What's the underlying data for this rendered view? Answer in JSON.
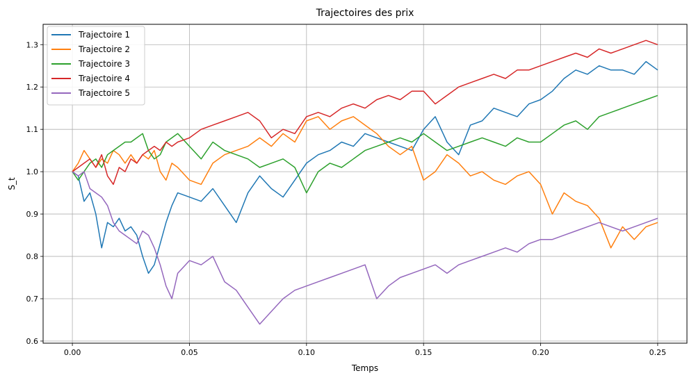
{
  "chart_data": {
    "type": "line",
    "title": "Trajectoires des prix",
    "xlabel": "Temps",
    "ylabel": "S_t",
    "xlim": [
      -0.0125,
      0.2625
    ],
    "ylim": [
      0.595,
      1.348
    ],
    "xticks": [
      0.0,
      0.05,
      0.1,
      0.15,
      0.2,
      0.25
    ],
    "xtick_labels": [
      "0.00",
      "0.05",
      "0.10",
      "0.15",
      "0.20",
      "0.25"
    ],
    "yticks": [
      0.6,
      0.7,
      0.8,
      0.9,
      1.0,
      1.1,
      1.2,
      1.3
    ],
    "ytick_labels": [
      "0.6",
      "0.7",
      "0.8",
      "0.9",
      "1.0",
      "1.1",
      "1.2",
      "1.3"
    ],
    "grid": true,
    "legend_position": "top-left",
    "series": [
      {
        "name": "Trajectoire 1",
        "color": "#1f77b4",
        "x": [
          0,
          0.0025,
          0.005,
          0.0075,
          0.01,
          0.0125,
          0.015,
          0.0175,
          0.02,
          0.0225,
          0.025,
          0.0275,
          0.03,
          0.0325,
          0.035,
          0.0375,
          0.04,
          0.0425,
          0.045,
          0.05,
          0.055,
          0.06,
          0.065,
          0.07,
          0.075,
          0.08,
          0.085,
          0.09,
          0.095,
          0.1,
          0.105,
          0.11,
          0.115,
          0.12,
          0.125,
          0.13,
          0.135,
          0.14,
          0.145,
          0.15,
          0.155,
          0.16,
          0.165,
          0.17,
          0.175,
          0.18,
          0.185,
          0.19,
          0.195,
          0.2,
          0.205,
          0.21,
          0.215,
          0.22,
          0.225,
          0.23,
          0.235,
          0.24,
          0.245,
          0.25
        ],
        "y": [
          1.0,
          0.99,
          0.93,
          0.95,
          0.9,
          0.82,
          0.88,
          0.87,
          0.89,
          0.86,
          0.87,
          0.85,
          0.8,
          0.76,
          0.78,
          0.83,
          0.88,
          0.92,
          0.95,
          0.94,
          0.93,
          0.96,
          0.92,
          0.88,
          0.95,
          0.99,
          0.96,
          0.94,
          0.98,
          1.02,
          1.04,
          1.05,
          1.07,
          1.06,
          1.09,
          1.08,
          1.07,
          1.06,
          1.05,
          1.1,
          1.13,
          1.07,
          1.04,
          1.11,
          1.12,
          1.15,
          1.14,
          1.13,
          1.16,
          1.17,
          1.19,
          1.22,
          1.24,
          1.23,
          1.25,
          1.24,
          1.24,
          1.23,
          1.26,
          1.24
        ]
      },
      {
        "name": "Trajectoire 2",
        "color": "#ff7f0e",
        "x": [
          0,
          0.0025,
          0.005,
          0.0075,
          0.01,
          0.0125,
          0.015,
          0.0175,
          0.02,
          0.0225,
          0.025,
          0.0275,
          0.03,
          0.0325,
          0.035,
          0.0375,
          0.04,
          0.0425,
          0.045,
          0.05,
          0.055,
          0.06,
          0.065,
          0.07,
          0.075,
          0.08,
          0.085,
          0.09,
          0.095,
          0.1,
          0.105,
          0.11,
          0.115,
          0.12,
          0.125,
          0.13,
          0.135,
          0.14,
          0.145,
          0.15,
          0.155,
          0.16,
          0.165,
          0.17,
          0.175,
          0.18,
          0.185,
          0.19,
          0.195,
          0.2,
          0.205,
          0.21,
          0.215,
          0.22,
          0.225,
          0.23,
          0.235,
          0.24,
          0.245,
          0.25
        ],
        "y": [
          1.0,
          1.02,
          1.05,
          1.03,
          1.01,
          1.03,
          1.02,
          1.05,
          1.04,
          1.02,
          1.04,
          1.02,
          1.04,
          1.03,
          1.05,
          1.0,
          0.98,
          1.02,
          1.01,
          0.98,
          0.97,
          1.02,
          1.04,
          1.05,
          1.06,
          1.08,
          1.06,
          1.09,
          1.07,
          1.12,
          1.13,
          1.1,
          1.12,
          1.13,
          1.11,
          1.09,
          1.06,
          1.04,
          1.06,
          0.98,
          1.0,
          1.04,
          1.02,
          0.99,
          1.0,
          0.98,
          0.97,
          0.99,
          1.0,
          0.97,
          0.9,
          0.95,
          0.93,
          0.92,
          0.89,
          0.82,
          0.87,
          0.84,
          0.87,
          0.88
        ]
      },
      {
        "name": "Trajectoire 3",
        "color": "#2ca02c",
        "x": [
          0,
          0.0025,
          0.005,
          0.0075,
          0.01,
          0.0125,
          0.015,
          0.0175,
          0.02,
          0.0225,
          0.025,
          0.0275,
          0.03,
          0.0325,
          0.035,
          0.0375,
          0.04,
          0.0425,
          0.045,
          0.05,
          0.055,
          0.06,
          0.065,
          0.07,
          0.075,
          0.08,
          0.085,
          0.09,
          0.095,
          0.1,
          0.105,
          0.11,
          0.115,
          0.12,
          0.125,
          0.13,
          0.135,
          0.14,
          0.145,
          0.15,
          0.155,
          0.16,
          0.165,
          0.17,
          0.175,
          0.18,
          0.185,
          0.19,
          0.195,
          0.2,
          0.205,
          0.21,
          0.215,
          0.22,
          0.225,
          0.23,
          0.235,
          0.24,
          0.245,
          0.25
        ],
        "y": [
          1.0,
          0.98,
          1.0,
          1.02,
          1.03,
          1.01,
          1.04,
          1.05,
          1.06,
          1.07,
          1.07,
          1.08,
          1.09,
          1.05,
          1.03,
          1.04,
          1.07,
          1.08,
          1.09,
          1.06,
          1.03,
          1.07,
          1.05,
          1.04,
          1.03,
          1.01,
          1.02,
          1.03,
          1.01,
          0.95,
          1.0,
          1.02,
          1.01,
          1.03,
          1.05,
          1.06,
          1.07,
          1.08,
          1.07,
          1.09,
          1.07,
          1.05,
          1.06,
          1.07,
          1.08,
          1.07,
          1.06,
          1.08,
          1.07,
          1.07,
          1.09,
          1.11,
          1.12,
          1.1,
          1.13,
          1.14,
          1.15,
          1.16,
          1.17,
          1.18
        ]
      },
      {
        "name": "Trajectoire 4",
        "color": "#d62728",
        "x": [
          0,
          0.0025,
          0.005,
          0.0075,
          0.01,
          0.0125,
          0.015,
          0.0175,
          0.02,
          0.0225,
          0.025,
          0.0275,
          0.03,
          0.0325,
          0.035,
          0.0375,
          0.04,
          0.0425,
          0.045,
          0.05,
          0.055,
          0.06,
          0.065,
          0.07,
          0.075,
          0.08,
          0.085,
          0.09,
          0.095,
          0.1,
          0.105,
          0.11,
          0.115,
          0.12,
          0.125,
          0.13,
          0.135,
          0.14,
          0.145,
          0.15,
          0.155,
          0.16,
          0.165,
          0.17,
          0.175,
          0.18,
          0.185,
          0.19,
          0.195,
          0.2,
          0.205,
          0.21,
          0.215,
          0.22,
          0.225,
          0.23,
          0.235,
          0.24,
          0.245,
          0.25
        ],
        "y": [
          1.0,
          1.01,
          1.02,
          1.03,
          1.01,
          1.04,
          0.99,
          0.97,
          1.01,
          1.0,
          1.03,
          1.02,
          1.04,
          1.05,
          1.06,
          1.05,
          1.07,
          1.06,
          1.07,
          1.08,
          1.1,
          1.11,
          1.12,
          1.13,
          1.14,
          1.12,
          1.08,
          1.1,
          1.09,
          1.13,
          1.14,
          1.13,
          1.15,
          1.16,
          1.15,
          1.17,
          1.18,
          1.17,
          1.19,
          1.19,
          1.16,
          1.18,
          1.2,
          1.21,
          1.22,
          1.23,
          1.22,
          1.24,
          1.24,
          1.25,
          1.26,
          1.27,
          1.28,
          1.27,
          1.29,
          1.28,
          1.29,
          1.3,
          1.31,
          1.3
        ]
      },
      {
        "name": "Trajectoire 5",
        "color": "#9467bd",
        "x": [
          0,
          0.0025,
          0.005,
          0.0075,
          0.01,
          0.0125,
          0.015,
          0.0175,
          0.02,
          0.0225,
          0.025,
          0.0275,
          0.03,
          0.0325,
          0.035,
          0.0375,
          0.04,
          0.0425,
          0.045,
          0.05,
          0.055,
          0.06,
          0.065,
          0.07,
          0.075,
          0.08,
          0.085,
          0.09,
          0.095,
          0.1,
          0.105,
          0.11,
          0.115,
          0.12,
          0.125,
          0.13,
          0.135,
          0.14,
          0.145,
          0.15,
          0.155,
          0.16,
          0.165,
          0.17,
          0.175,
          0.18,
          0.185,
          0.19,
          0.195,
          0.2,
          0.205,
          0.21,
          0.215,
          0.22,
          0.225,
          0.23,
          0.235,
          0.24,
          0.245,
          0.25
        ],
        "y": [
          1.0,
          0.99,
          1.0,
          0.96,
          0.95,
          0.94,
          0.92,
          0.88,
          0.86,
          0.85,
          0.84,
          0.83,
          0.86,
          0.85,
          0.82,
          0.78,
          0.73,
          0.7,
          0.76,
          0.79,
          0.78,
          0.8,
          0.74,
          0.72,
          0.68,
          0.64,
          0.67,
          0.7,
          0.72,
          0.73,
          0.74,
          0.75,
          0.76,
          0.77,
          0.78,
          0.7,
          0.73,
          0.75,
          0.76,
          0.77,
          0.78,
          0.76,
          0.78,
          0.79,
          0.8,
          0.81,
          0.82,
          0.81,
          0.83,
          0.84,
          0.84,
          0.85,
          0.86,
          0.87,
          0.88,
          0.87,
          0.86,
          0.87,
          0.88,
          0.89
        ]
      }
    ]
  }
}
